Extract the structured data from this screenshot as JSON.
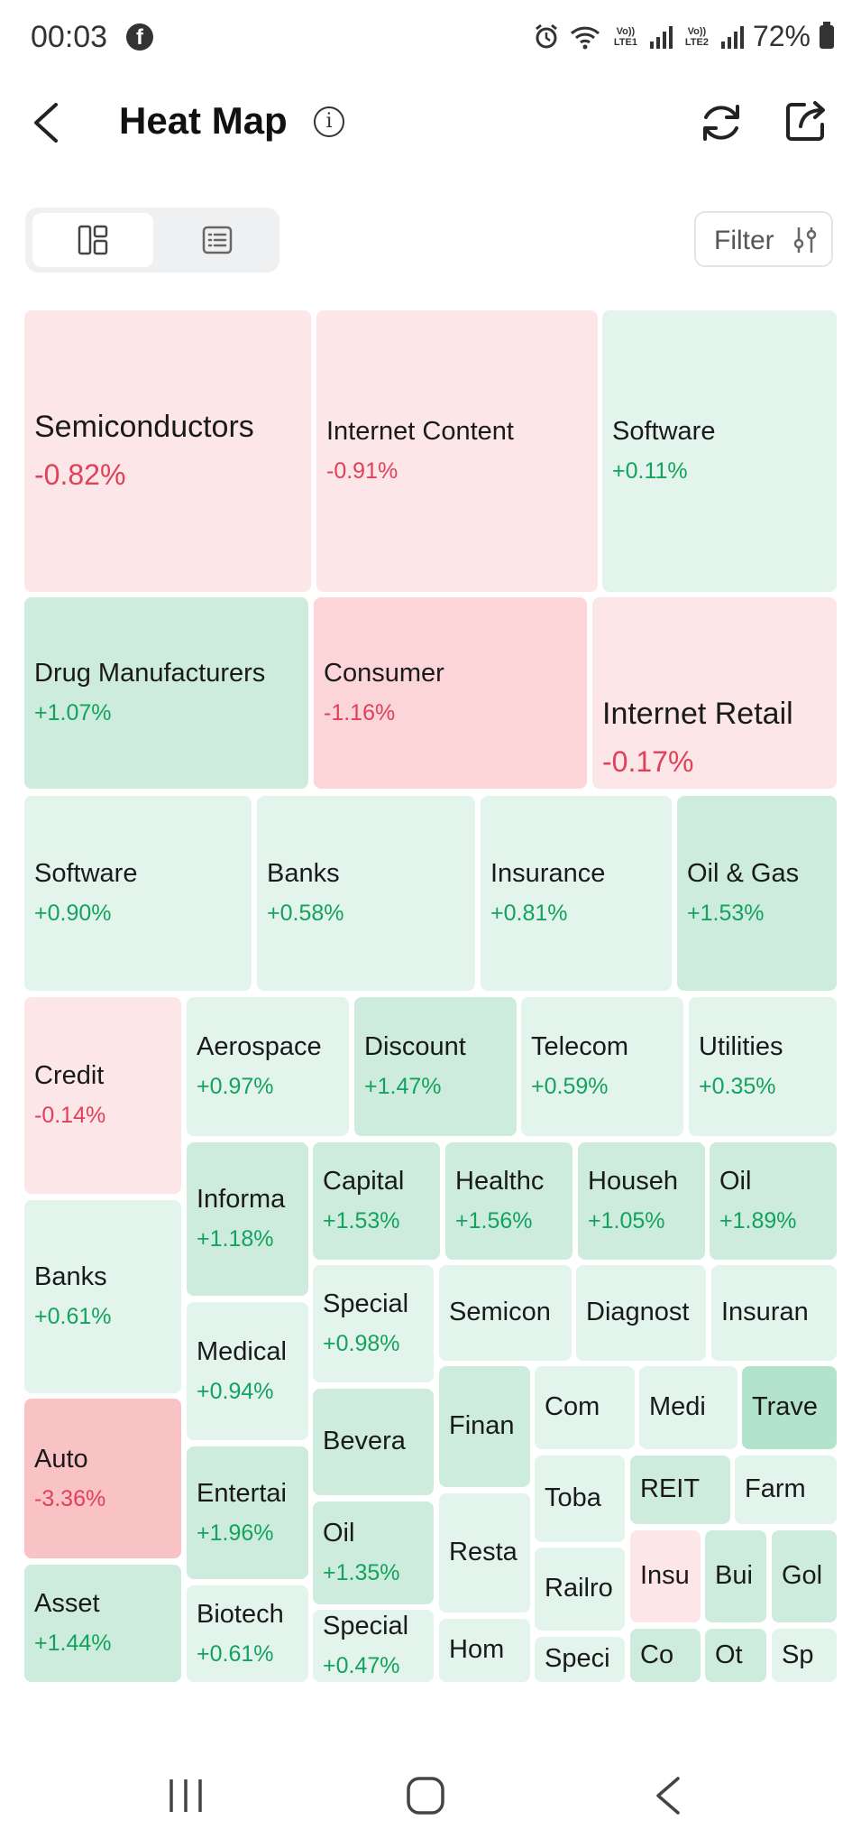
{
  "status_bar": {
    "time": "00:03",
    "lte1": "Vo)) LTE1",
    "lte2": "Vo)) LTE2",
    "battery": "72%"
  },
  "header": {
    "title": "Heat Map",
    "info_icon": "info-icon",
    "refresh_icon": "refresh-icon",
    "share_icon": "share-icon"
  },
  "toolbar": {
    "filter_label": "Filter"
  },
  "colors": {
    "light_red": "#fde6e7",
    "red": "#fbd5d8",
    "strong_red": "#f9c2c4",
    "light_green": "#e2f4ec",
    "green": "#cdecdd",
    "strong_green": "#b4e3cc",
    "up_text": "#13a35e",
    "down_text": "#e0405a"
  },
  "heatmap": [
    {
      "name": "Semiconductors",
      "change": "-0.82%"
    },
    {
      "name": "Internet Content",
      "change": "-0.91%"
    },
    {
      "name": "Software",
      "change": "+0.11%"
    },
    {
      "name": "Drug Manufacturers",
      "change": "+1.07%"
    },
    {
      "name": "Consumer",
      "change": "-1.16%"
    },
    {
      "name": "Internet Retail",
      "change": "-0.17%"
    },
    {
      "name": "Software",
      "change": "+0.90%"
    },
    {
      "name": "Banks",
      "change": "+0.58%"
    },
    {
      "name": "Insurance",
      "change": "+0.81%"
    },
    {
      "name": "Oil & Gas",
      "change": "+1.53%"
    },
    {
      "name": "Credit",
      "change": "-0.14%"
    },
    {
      "name": "Aerospace",
      "change": "+0.97%"
    },
    {
      "name": "Discount",
      "change": "+1.47%"
    },
    {
      "name": "Telecom",
      "change": "+0.59%"
    },
    {
      "name": "Utilities",
      "change": "+0.35%"
    },
    {
      "name": "Banks",
      "change": "+0.61%"
    },
    {
      "name": "Informa",
      "change": "+1.18%"
    },
    {
      "name": "Capital",
      "change": "+1.53%"
    },
    {
      "name": "Healthc",
      "change": "+1.56%"
    },
    {
      "name": "Househ",
      "change": "+1.05%"
    },
    {
      "name": "Oil",
      "change": "+1.89%"
    },
    {
      "name": "Special",
      "change": "+0.98%"
    },
    {
      "name": "Semicon",
      "change": ""
    },
    {
      "name": "Diagnost",
      "change": ""
    },
    {
      "name": "Insuran",
      "change": ""
    },
    {
      "name": "Medical",
      "change": "+0.94%"
    },
    {
      "name": "Auto",
      "change": "-3.36%"
    },
    {
      "name": "Bevera",
      "change": ""
    },
    {
      "name": "Finan",
      "change": ""
    },
    {
      "name": "Com",
      "change": ""
    },
    {
      "name": "Medi",
      "change": ""
    },
    {
      "name": "Trave",
      "change": ""
    },
    {
      "name": "Entertai",
      "change": "+1.96%"
    },
    {
      "name": "Toba",
      "change": ""
    },
    {
      "name": "REIT",
      "change": ""
    },
    {
      "name": "Farm",
      "change": ""
    },
    {
      "name": "Oil",
      "change": "+1.35%"
    },
    {
      "name": "Resta",
      "change": ""
    },
    {
      "name": "Railro",
      "change": ""
    },
    {
      "name": "Insu",
      "change": ""
    },
    {
      "name": "Bui",
      "change": ""
    },
    {
      "name": "Gol",
      "change": ""
    },
    {
      "name": "Asset",
      "change": "+1.44%"
    },
    {
      "name": "Biotech",
      "change": "+0.61%"
    },
    {
      "name": "Special",
      "change": "+0.47%"
    },
    {
      "name": "Hom",
      "change": ""
    },
    {
      "name": "Speci",
      "change": ""
    },
    {
      "name": "Co",
      "change": ""
    },
    {
      "name": "Ot",
      "change": ""
    },
    {
      "name": "Sp",
      "change": ""
    }
  ]
}
